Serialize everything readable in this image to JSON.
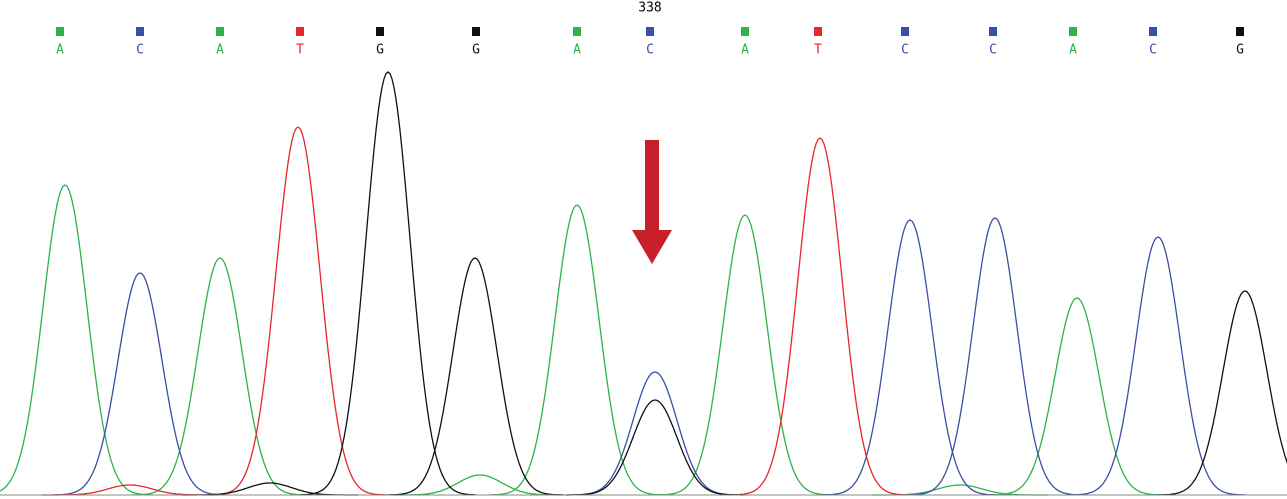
{
  "chart_data": {
    "type": "chromatogram",
    "position_label": "338",
    "bases": [
      "A",
      "C",
      "A",
      "T",
      "G",
      "G",
      "A",
      "C",
      "A",
      "T",
      "C",
      "C",
      "A",
      "C",
      "G"
    ],
    "base_x": [
      60,
      140,
      220,
      300,
      380,
      476,
      577,
      650,
      745,
      818,
      905,
      993,
      1073,
      1153,
      1240
    ],
    "base_colors": {
      "A": "#2db34a",
      "C": "#3a4fa8",
      "T": "#e8262b",
      "G": "#111111"
    },
    "xlim": [
      0,
      1287
    ],
    "ylim": [
      0,
      423
    ],
    "series": [
      {
        "color": "#2db34a",
        "x": [
          65,
          220,
          480,
          577,
          745,
          960,
          1077
        ],
        "values": [
          310,
          237,
          20,
          290,
          280,
          10,
          197
        ]
      },
      {
        "color": "#3a4fa8",
        "x": [
          140,
          655,
          910,
          995,
          1158
        ],
        "values": [
          222,
          123,
          275,
          277,
          258
        ]
      },
      {
        "color": "#e8262b",
        "x": [
          130,
          298,
          820
        ],
        "values": [
          10,
          368,
          357
        ]
      },
      {
        "color": "#111111",
        "x": [
          270,
          388,
          475,
          655,
          1245
        ],
        "values": [
          12,
          423,
          237,
          95,
          204
        ]
      }
    ]
  }
}
